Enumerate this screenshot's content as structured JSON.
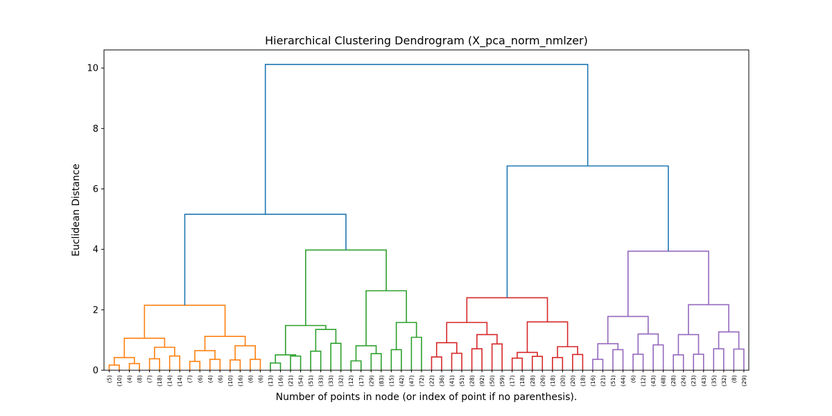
{
  "chart_data": {
    "type": "dendrogram",
    "title": "Hierarchical Clustering Dendrogram (X_pca_norm_nmlzer)",
    "xlabel": "Number of points in node (or index of point if no parenthesis).",
    "ylabel": "Euclidean Distance",
    "ylim": [
      0,
      10.6
    ],
    "yticks": [
      0,
      2,
      4,
      6,
      8,
      10
    ],
    "grid": false,
    "leaf_labels": [
      "(5)",
      "(10)",
      "(4)",
      "(8)",
      "(7)",
      "(18)",
      "(14)",
      "(14)",
      "(7)",
      "(6)",
      "(4)",
      "(6)",
      "(10)",
      "(16)",
      "(6)",
      "(6)",
      "(13)",
      "(16)",
      "(21)",
      "(54)",
      "(51)",
      "(33)",
      "(33)",
      "(32)",
      "(12)",
      "(17)",
      "(29)",
      "(83)",
      "(15)",
      "(42)",
      "(47)",
      "(72)",
      "(22)",
      "(36)",
      "(41)",
      "(51)",
      "(28)",
      "(92)",
      "(50)",
      "(59)",
      "(17)",
      "(18)",
      "(28)",
      "(26)",
      "(18)",
      "(20)",
      "(20)",
      "(18)",
      "(16)",
      "(21)",
      "(51)",
      "(44)",
      "(6)",
      "(12)",
      "(43)",
      "(48)",
      "(28)",
      "(24)",
      "(23)",
      "(43)",
      "(35)",
      "(32)",
      "(8)",
      "(29)"
    ],
    "cluster_colors": {
      "C1": "#ff7f0e",
      "C2": "#2ca02c",
      "C3": "#d62728",
      "C4": "#9467bd",
      "above": "#1f77b4"
    },
    "merges": [
      {
        "a": 0,
        "b": 1,
        "h": 0.17,
        "c": "C1"
      },
      {
        "a": 2,
        "b": 3,
        "h": 0.22,
        "c": "C1"
      },
      {
        "a": 64,
        "b": 65,
        "h": 0.42,
        "c": "C1"
      },
      {
        "a": 4,
        "b": 5,
        "h": 0.38,
        "c": "C1"
      },
      {
        "a": 6,
        "b": 7,
        "h": 0.47,
        "c": "C1"
      },
      {
        "a": 67,
        "b": 68,
        "h": 0.76,
        "c": "C1"
      },
      {
        "a": 66,
        "b": 69,
        "h": 1.06,
        "c": "C1"
      },
      {
        "a": 8,
        "b": 9,
        "h": 0.29,
        "c": "C1"
      },
      {
        "a": 10,
        "b": 11,
        "h": 0.36,
        "c": "C1"
      },
      {
        "a": 71,
        "b": 72,
        "h": 0.65,
        "c": "C1"
      },
      {
        "a": 12,
        "b": 13,
        "h": 0.34,
        "c": "C1"
      },
      {
        "a": 14,
        "b": 15,
        "h": 0.36,
        "c": "C1"
      },
      {
        "a": 74,
        "b": 75,
        "h": 0.81,
        "c": "C1"
      },
      {
        "a": 73,
        "b": 76,
        "h": 1.12,
        "c": "C1"
      },
      {
        "a": 70,
        "b": 77,
        "h": 2.15,
        "c": "C1"
      },
      {
        "a": 16,
        "b": 17,
        "h": 0.24,
        "c": "C2"
      },
      {
        "a": 18,
        "b": 19,
        "h": 0.47,
        "c": "C2"
      },
      {
        "a": 79,
        "b": 80,
        "h": 0.51,
        "c": "C2"
      },
      {
        "a": 20,
        "b": 21,
        "h": 0.63,
        "c": "C2"
      },
      {
        "a": 22,
        "b": 23,
        "h": 0.89,
        "c": "C2"
      },
      {
        "a": 82,
        "b": 83,
        "h": 1.35,
        "c": "C2"
      },
      {
        "a": 81,
        "b": 84,
        "h": 1.48,
        "c": "C2"
      },
      {
        "a": 24,
        "b": 25,
        "h": 0.31,
        "c": "C2"
      },
      {
        "a": 26,
        "b": 27,
        "h": 0.55,
        "c": "C2"
      },
      {
        "a": 86,
        "b": 87,
        "h": 0.81,
        "c": "C2"
      },
      {
        "a": 28,
        "b": 29,
        "h": 0.68,
        "c": "C2"
      },
      {
        "a": 30,
        "b": 31,
        "h": 1.09,
        "c": "C2"
      },
      {
        "a": 89,
        "b": 90,
        "h": 1.58,
        "c": "C2"
      },
      {
        "a": 88,
        "b": 91,
        "h": 2.63,
        "c": "C2"
      },
      {
        "a": 85,
        "b": 92,
        "h": 3.98,
        "c": "C2"
      },
      {
        "a": 78,
        "b": 93,
        "h": 5.16,
        "c": "above"
      },
      {
        "a": 32,
        "b": 33,
        "h": 0.44,
        "c": "C3"
      },
      {
        "a": 34,
        "b": 35,
        "h": 0.56,
        "c": "C3"
      },
      {
        "a": 95,
        "b": 96,
        "h": 0.91,
        "c": "C3"
      },
      {
        "a": 36,
        "b": 37,
        "h": 0.71,
        "c": "C3"
      },
      {
        "a": 38,
        "b": 39,
        "h": 0.87,
        "c": "C3"
      },
      {
        "a": 98,
        "b": 99,
        "h": 1.18,
        "c": "C3"
      },
      {
        "a": 97,
        "b": 100,
        "h": 1.58,
        "c": "C3"
      },
      {
        "a": 40,
        "b": 41,
        "h": 0.4,
        "c": "C3"
      },
      {
        "a": 42,
        "b": 43,
        "h": 0.46,
        "c": "C3"
      },
      {
        "a": 102,
        "b": 103,
        "h": 0.59,
        "c": "C3"
      },
      {
        "a": 44,
        "b": 45,
        "h": 0.42,
        "c": "C3"
      },
      {
        "a": 46,
        "b": 47,
        "h": 0.52,
        "c": "C3"
      },
      {
        "a": 105,
        "b": 106,
        "h": 0.78,
        "c": "C3"
      },
      {
        "a": 104,
        "b": 107,
        "h": 1.6,
        "c": "C3"
      },
      {
        "a": 101,
        "b": 108,
        "h": 2.4,
        "c": "C3"
      },
      {
        "a": 48,
        "b": 49,
        "h": 0.36,
        "c": "C4"
      },
      {
        "a": 50,
        "b": 51,
        "h": 0.68,
        "c": "C4"
      },
      {
        "a": 110,
        "b": 111,
        "h": 0.88,
        "c": "C4"
      },
      {
        "a": 52,
        "b": 53,
        "h": 0.53,
        "c": "C4"
      },
      {
        "a": 54,
        "b": 55,
        "h": 0.84,
        "c": "C4"
      },
      {
        "a": 113,
        "b": 114,
        "h": 1.2,
        "c": "C4"
      },
      {
        "a": 112,
        "b": 115,
        "h": 1.78,
        "c": "C4"
      },
      {
        "a": 56,
        "b": 57,
        "h": 0.51,
        "c": "C4"
      },
      {
        "a": 58,
        "b": 59,
        "h": 0.53,
        "c": "C4"
      },
      {
        "a": 117,
        "b": 118,
        "h": 1.18,
        "c": "C4"
      },
      {
        "a": 60,
        "b": 61,
        "h": 0.71,
        "c": "C4"
      },
      {
        "a": 62,
        "b": 63,
        "h": 0.7,
        "c": "C4"
      },
      {
        "a": 120,
        "b": 121,
        "h": 1.27,
        "c": "C4"
      },
      {
        "a": 119,
        "b": 122,
        "h": 2.17,
        "c": "C4"
      },
      {
        "a": 116,
        "b": 123,
        "h": 3.94,
        "c": "C4"
      },
      {
        "a": 109,
        "b": 124,
        "h": 6.76,
        "c": "above"
      },
      {
        "a": 94,
        "b": 125,
        "h": 10.12,
        "c": "above"
      }
    ]
  }
}
